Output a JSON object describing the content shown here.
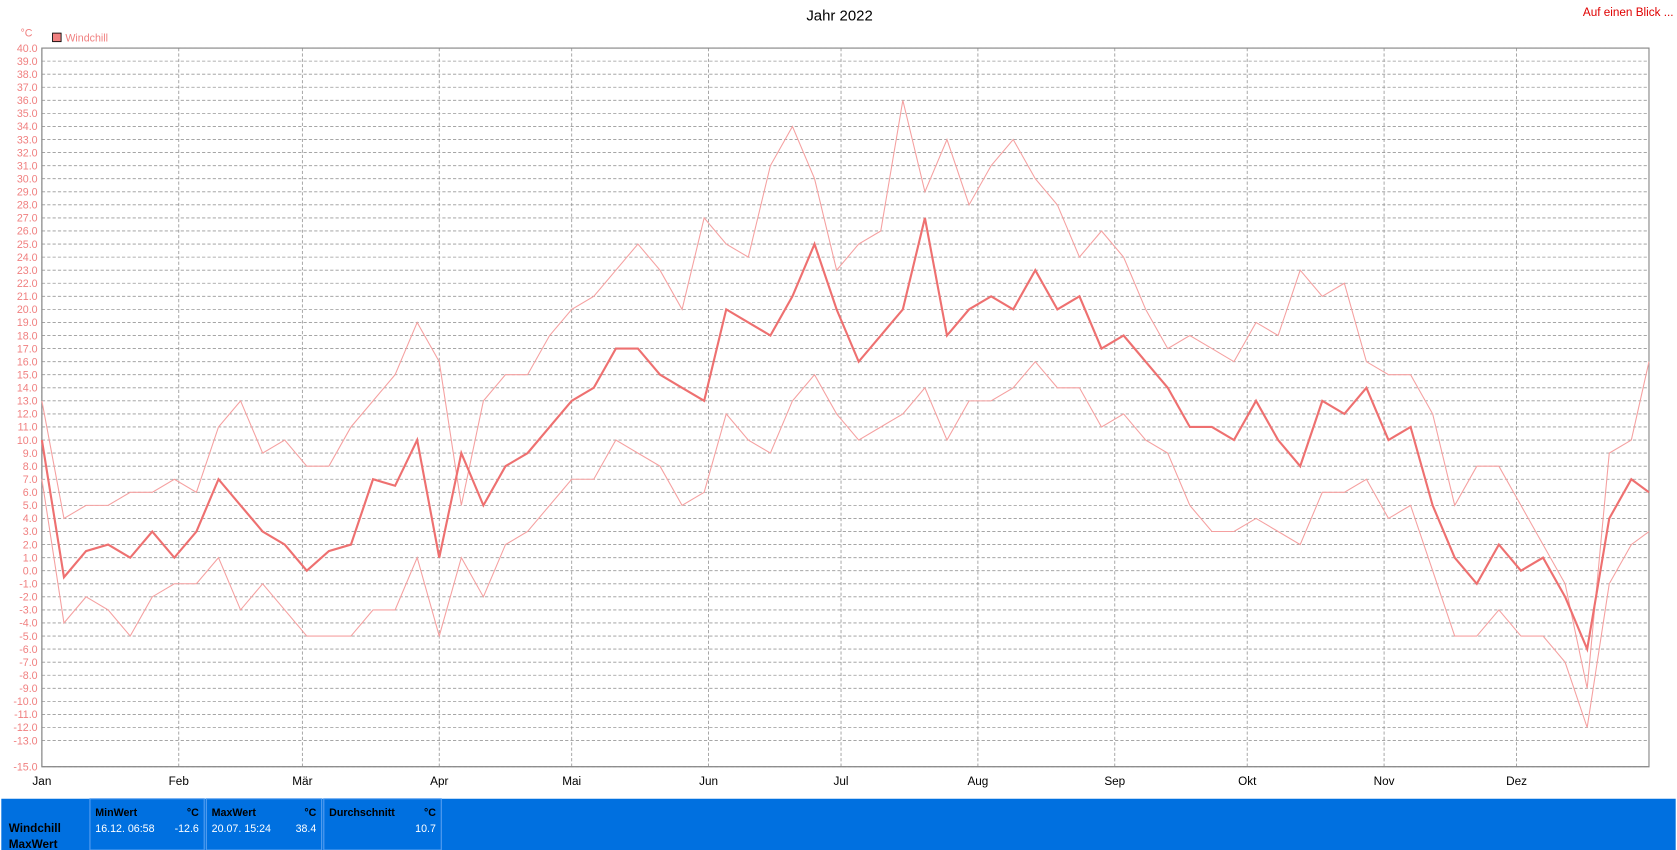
{
  "chart_data": {
    "type": "line",
    "title": "Jahr 2022",
    "link": "Auf einen Blick ...",
    "y_unit": "°C",
    "legend": "Windchill",
    "legend_color": "#f08080",
    "x": [
      0,
      5,
      10,
      15,
      20,
      25,
      30,
      35,
      40,
      45,
      50,
      55,
      60,
      65,
      70,
      75,
      80,
      85,
      90,
      95,
      100,
      105,
      110,
      115,
      120,
      125,
      130,
      135,
      140,
      145,
      150,
      155,
      160,
      165,
      170,
      175,
      180,
      185,
      190,
      195,
      200,
      205,
      210,
      215,
      220,
      225,
      230,
      235,
      240,
      245,
      250,
      255,
      260,
      265,
      270,
      275,
      280,
      285,
      290,
      295,
      300,
      305,
      310,
      315,
      320,
      325,
      330,
      335,
      340,
      345,
      350,
      355,
      360,
      364
    ],
    "series": [
      {
        "color": "#f5a0a0",
        "width": 1,
        "values": [
          13,
          4,
          5,
          5,
          6,
          6,
          7,
          6,
          11,
          13,
          9,
          10,
          8,
          8,
          11,
          13,
          15,
          19,
          16,
          5,
          13,
          15,
          15,
          18,
          20,
          21,
          23,
          25,
          23,
          20,
          27,
          25,
          24,
          31,
          34,
          30,
          23,
          25,
          26,
          36,
          29,
          33,
          28,
          31,
          33,
          30,
          28,
          24,
          26,
          24,
          20,
          17,
          18,
          17,
          16,
          19,
          18,
          23,
          21,
          22,
          16,
          15,
          15,
          12,
          5,
          8,
          8,
          5,
          2,
          -1,
          -9,
          9,
          10,
          16
        ]
      },
      {
        "color": "#ee7070",
        "width": 2,
        "values": [
          10,
          -0.5,
          1.5,
          2,
          1,
          3,
          1,
          3,
          7,
          5,
          3,
          2,
          0,
          1.5,
          2,
          7,
          6.5,
          10,
          1,
          9,
          5,
          8,
          9,
          11,
          13,
          14,
          17,
          17,
          15,
          14,
          13,
          20,
          19,
          18,
          21,
          25,
          20,
          16,
          18,
          20,
          27,
          18,
          20,
          21,
          20,
          23,
          20,
          21,
          17,
          18,
          16,
          14,
          11,
          11,
          10,
          13,
          10,
          8,
          13,
          12,
          14,
          10,
          11,
          5,
          1,
          -1,
          2,
          0,
          1,
          -2,
          -6,
          4,
          7,
          6
        ]
      },
      {
        "color": "#f5a0a0",
        "width": 1,
        "values": [
          7,
          -4,
          -2,
          -3,
          -5,
          -2,
          -1,
          -1,
          1,
          -3,
          -1,
          -3,
          -5,
          -5,
          -5,
          -3,
          -3,
          1,
          -5,
          1,
          -2,
          2,
          3,
          5,
          7,
          7,
          10,
          9,
          8,
          5,
          6,
          12,
          10,
          9,
          13,
          15,
          12,
          10,
          11,
          12,
          14,
          10,
          13,
          13,
          14,
          16,
          14,
          14,
          11,
          12,
          10,
          9,
          5,
          3,
          3,
          4,
          3,
          2,
          6,
          6,
          7,
          4,
          5,
          0,
          -5,
          -5,
          -3,
          -5,
          -5,
          -7,
          -12,
          -1,
          2,
          3
        ]
      }
    ],
    "xlim": [
      0,
      364
    ],
    "xticks": [
      {
        "value": 0,
        "label": "Jan"
      },
      {
        "value": 31,
        "label": "Feb"
      },
      {
        "value": 59,
        "label": "Mär"
      },
      {
        "value": 90,
        "label": "Apr"
      },
      {
        "value": 120,
        "label": "Mai"
      },
      {
        "value": 151,
        "label": "Jun"
      },
      {
        "value": 181,
        "label": "Jul"
      },
      {
        "value": 212,
        "label": "Aug"
      },
      {
        "value": 243,
        "label": "Sep"
      },
      {
        "value": 273,
        "label": "Okt"
      },
      {
        "value": 304,
        "label": "Nov"
      },
      {
        "value": 334,
        "label": "Dez"
      }
    ],
    "ylim": [
      -15,
      40
    ],
    "yticks": [
      {
        "value": -15,
        "label": "-15.0"
      },
      {
        "value": -13,
        "label": "-13.0"
      },
      {
        "value": -12,
        "label": "-12.0"
      },
      {
        "value": -11,
        "label": "-11.0"
      },
      {
        "value": -10,
        "label": "-10.0"
      },
      {
        "value": -9,
        "label": "-9.0"
      },
      {
        "value": -8,
        "label": "-8.0"
      },
      {
        "value": -7,
        "label": "-7.0"
      },
      {
        "value": -6,
        "label": "-6.0"
      },
      {
        "value": -5,
        "label": "-5.0"
      },
      {
        "value": -4,
        "label": "-4.0"
      },
      {
        "value": -3,
        "label": "-3.0"
      },
      {
        "value": -2,
        "label": "-2.0"
      },
      {
        "value": -1,
        "label": "-1.0"
      },
      {
        "value": 0,
        "label": "0.0"
      },
      {
        "value": 1,
        "label": "1.0"
      },
      {
        "value": 2,
        "label": "2.0"
      },
      {
        "value": 3,
        "label": "3.0"
      },
      {
        "value": 4,
        "label": "4.0"
      },
      {
        "value": 5,
        "label": "5.0"
      },
      {
        "value": 6,
        "label": "6.0"
      },
      {
        "value": 7,
        "label": "7.0"
      },
      {
        "value": 8,
        "label": "8.0"
      },
      {
        "value": 9,
        "label": "9.0"
      },
      {
        "value": 10,
        "label": "10.0"
      },
      {
        "value": 11,
        "label": "11.0"
      },
      {
        "value": 12,
        "label": "12.0"
      },
      {
        "value": 13,
        "label": "13.0"
      },
      {
        "value": 14,
        "label": "14.0"
      },
      {
        "value": 15,
        "label": "15.0"
      },
      {
        "value": 16,
        "label": "16.0"
      },
      {
        "value": 17,
        "label": "17.0"
      },
      {
        "value": 18,
        "label": "18.0"
      },
      {
        "value": 19,
        "label": "19.0"
      },
      {
        "value": 20,
        "label": "20.0"
      },
      {
        "value": 21,
        "label": "21.0"
      },
      {
        "value": 22,
        "label": "22.0"
      },
      {
        "value": 23,
        "label": "23.0"
      },
      {
        "value": 24,
        "label": "24.0"
      },
      {
        "value": 25,
        "label": "25.0"
      },
      {
        "value": 26,
        "label": "26.0"
      },
      {
        "value": 27,
        "label": "27.0"
      },
      {
        "value": 28,
        "label": "28.0"
      },
      {
        "value": 29,
        "label": "29.0"
      },
      {
        "value": 30,
        "label": "30.0"
      },
      {
        "value": 31,
        "label": "31.0"
      },
      {
        "value": 32,
        "label": "32.0"
      },
      {
        "value": 33,
        "label": "33.0"
      },
      {
        "value": 34,
        "label": "34.0"
      },
      {
        "value": 35,
        "label": "35.0"
      },
      {
        "value": 36,
        "label": "36.0"
      },
      {
        "value": 37,
        "label": "37.0"
      },
      {
        "value": 38,
        "label": "38.0"
      },
      {
        "value": 39,
        "label": "39.0"
      },
      {
        "value": 40,
        "label": "40.0"
      }
    ],
    "grid": true
  },
  "stats": {
    "row_labels": [
      "Windchill",
      "MaxWert"
    ],
    "columns": [
      {
        "header": "MinWert",
        "unit": "°C",
        "date": "16.12.  06:58",
        "value": "-12.6"
      },
      {
        "header": "MaxWert",
        "unit": "°C",
        "date": "20.07.  15:24",
        "value": "38.4"
      },
      {
        "header": "Durchschnitt",
        "unit": "°C",
        "date": "",
        "value": "10.7"
      }
    ]
  }
}
